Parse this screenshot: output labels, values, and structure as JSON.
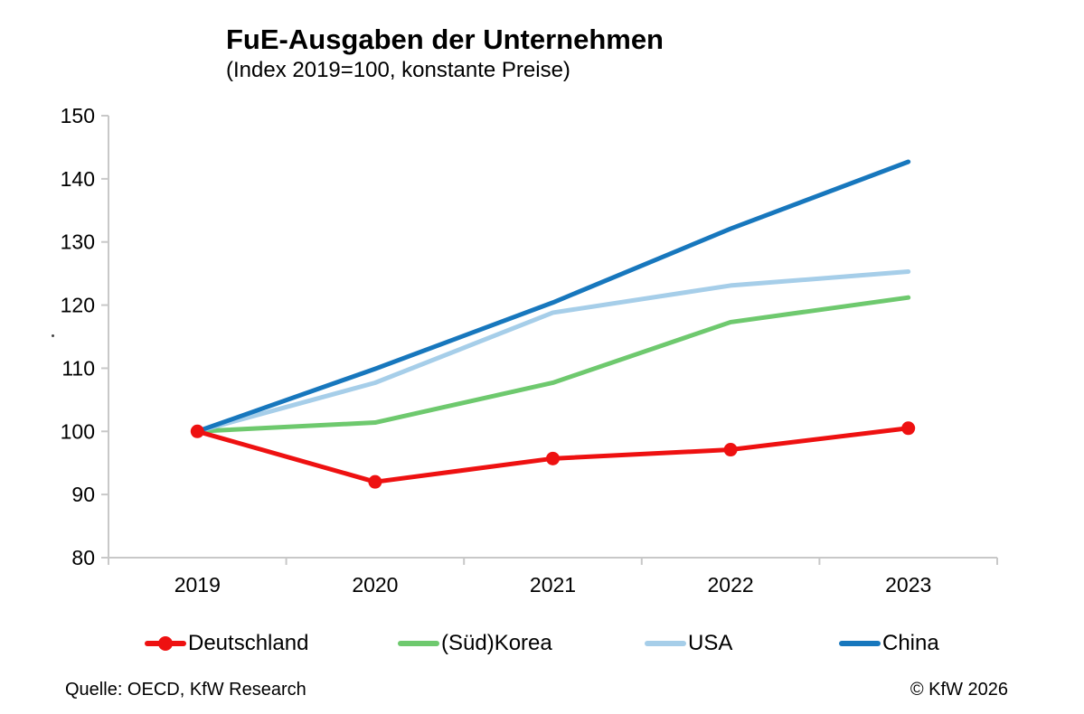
{
  "header": {
    "title": "FuE-Ausgaben der Unternehmen",
    "subtitle": "(Index 2019=100, konstante Preise)"
  },
  "chart_data": {
    "type": "line",
    "title": "FuE-Ausgaben der Unternehmen",
    "subtitle": "(Index 2019=100, konstante Preise)",
    "categories": [
      "2019",
      "2020",
      "2021",
      "2022",
      "2023"
    ],
    "series": [
      {
        "name": "Deutschland",
        "color": "#ee1111",
        "marker": true,
        "values": [
          100,
          92,
          95.7,
          97.1,
          100.5
        ]
      },
      {
        "name": "(Süd)Korea",
        "color": "#6ec96e",
        "marker": false,
        "values": [
          100,
          101.4,
          107.7,
          117.3,
          121.2
        ]
      },
      {
        "name": "USA",
        "color": "#a6cee9",
        "marker": false,
        "values": [
          100,
          107.7,
          118.8,
          123.1,
          125.3
        ]
      },
      {
        "name": "China",
        "color": "#1777bd",
        "marker": false,
        "values": [
          100,
          109.9,
          120.4,
          132.1,
          142.7
        ]
      }
    ],
    "ylim": [
      80,
      150
    ],
    "ytick_step": 10,
    "yticks": [
      80,
      90,
      100,
      110,
      120,
      130,
      140,
      150
    ],
    "grid": false,
    "legend_position": "bottom",
    "axis_color": "#c8c8c8",
    "text_color": "#000000"
  },
  "footer": {
    "source": "Quelle: OECD, KfW Research",
    "copyright": "© KfW 2026"
  }
}
